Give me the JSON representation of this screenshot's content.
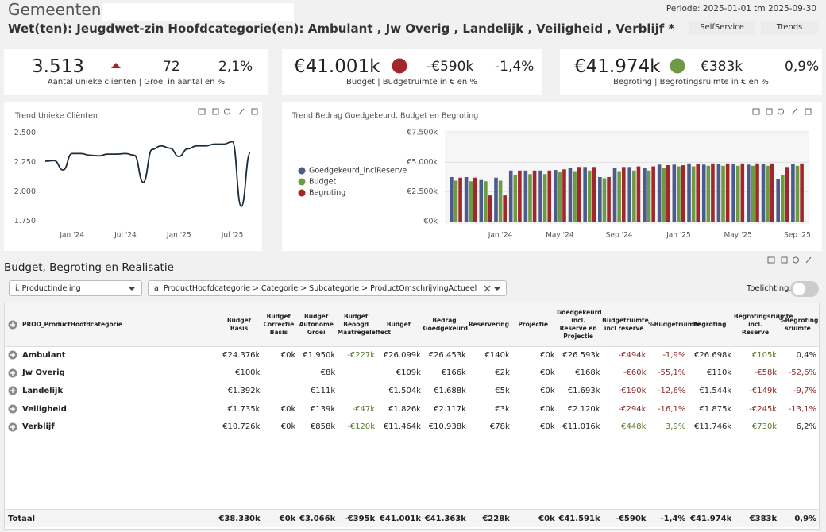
{
  "header": {
    "title": "Gemeenten:",
    "subtitle": "Wet(ten): Jeugdwet-zin Hoofdcategorie(en): Ambulant , Jw Overig , Landelijk , Veiligheid , Verblijf *",
    "period": "Periode: 2025-01-01 tm 2025-09-30",
    "buttons": [
      "SelfService",
      "Trends"
    ]
  },
  "kpis": [
    {
      "value": "3.513",
      "indicator": "triangle",
      "indicator_color": "#a3272a",
      "delta": "72",
      "pct": "2,1%",
      "label": "Aantal unieke clienten | Groei in aantal en %"
    },
    {
      "value": "€41.001k",
      "indicator": "circle",
      "indicator_color": "#a3272a",
      "delta": "-€590k",
      "pct": "-1,4%",
      "label": "Budget | Budgetruimte in € en %"
    },
    {
      "value": "€41.974k",
      "indicator": "circle",
      "indicator_color": "#6e9a45",
      "delta": "€383k",
      "pct": "0,9%",
      "label": "Begroting | Begrotingsruimte in € en %"
    }
  ],
  "trend_clients": {
    "type": "line",
    "title": "Trend Unieke Cliënten",
    "categories": [
      null,
      null,
      null,
      "Jan '24",
      null,
      null,
      null,
      null,
      null,
      "Jul '24",
      null,
      null,
      null,
      null,
      null,
      "Jan '25",
      null,
      null,
      null,
      null,
      null,
      "Jul '25",
      null,
      null
    ],
    "values": [
      2260,
      2265,
      2185,
      2325,
      2325,
      2310,
      2305,
      2320,
      2320,
      2325,
      2310,
      2080,
      2360,
      2390,
      2370,
      2300,
      2365,
      2390,
      2390,
      2405,
      2405,
      2425,
      1875,
      2330
    ],
    "color": "#1c2b3a",
    "ylim": [
      1700,
      2550
    ],
    "yticks": [
      {
        "value": 1750,
        "label": "1.750"
      },
      {
        "value": 2000,
        "label": "2.000"
      },
      {
        "value": 2250,
        "label": "2.250"
      },
      {
        "value": 2500,
        "label": "2.500"
      }
    ],
    "grid": false
  },
  "trend_budget": {
    "type": "bar",
    "title": "Trend Bedrag Goedgekeurd, Budget en Begroting",
    "categories": [
      null,
      null,
      null,
      "Jan '24",
      null,
      null,
      null,
      "May '24",
      null,
      null,
      null,
      "Sep '24",
      null,
      null,
      null,
      "Jan '25",
      null,
      null,
      null,
      "May '25",
      null,
      null,
      null,
      "Sep '25"
    ],
    "series": [
      {
        "name": "Goedgekeurd_inclReserve",
        "color": "#4b5b8c",
        "values": [
          3750,
          3750,
          3500,
          3700,
          4300,
          4300,
          4300,
          4350,
          4550,
          4600,
          3750,
          4550,
          4600,
          4550,
          4800,
          4800,
          4900,
          4800,
          4850,
          4850,
          4800,
          4850,
          3600,
          4850
        ]
      },
      {
        "name": "Budget",
        "color": "#6e9a45",
        "values": [
          3450,
          3400,
          3400,
          3450,
          3950,
          4000,
          4000,
          4150,
          4250,
          4300,
          3650,
          4250,
          4300,
          4300,
          4550,
          4650,
          4650,
          4700,
          4700,
          4700,
          4700,
          4700,
          3900,
          4700
        ]
      },
      {
        "name": "Begroting",
        "color": "#a3272a",
        "values": [
          3700,
          3700,
          2200,
          2200,
          4300,
          4300,
          4300,
          4400,
          4600,
          4600,
          3750,
          4600,
          4650,
          4650,
          4750,
          4750,
          4850,
          4900,
          4900,
          4900,
          4900,
          4900,
          4600,
          4900
        ]
      }
    ],
    "ylim": [
      0,
      7500
    ],
    "yticks": [
      {
        "value": 0,
        "label": "€0k"
      },
      {
        "value": 2500,
        "label": "€2.500k"
      },
      {
        "value": 5000,
        "label": "€5.000k"
      },
      {
        "value": 7500,
        "label": "€7.500k"
      }
    ],
    "grid": true,
    "legend": "left"
  },
  "section": {
    "title": "Budget, Begroting en Realisatie",
    "grouping": "i. Productindeling",
    "hierarchy": "a. ProductHoofdcategorie > Categorie > Subcategorie > ProductOmschrijvingActueel",
    "toggle_label": "Toelichting:"
  },
  "table": {
    "columns": [
      "PROD_ProductHoofdcategorie",
      "Budget Basis",
      "Budget Correctie Basis",
      "Budget Autonome Groei",
      "Budget Beoogd Maatregeleffect",
      "Budget",
      "Bedrag Goedgekeurd",
      "Reservering",
      "Projectie",
      "Goedgekeurd incl. Reserve en Projectie",
      "Budgetruimte incl reserve",
      "%Budgetruimte",
      "Begroting",
      "Begrotingsruimte incl. Reserve",
      "%Begroting sruimte"
    ],
    "rows": [
      [
        "Ambulant",
        "€24.376k",
        "€0k",
        "€1.950k",
        "-€227k",
        "€26.099k",
        "€26.453k",
        "€140k",
        "€0k",
        "€26.593k",
        "-€494k",
        "-1,9%",
        "€26.698k",
        "€105k",
        "0,4%"
      ],
      [
        "Jw Overig",
        "€100k",
        null,
        "€8k",
        null,
        "€109k",
        "€166k",
        "€2k",
        "€0k",
        "€168k",
        "-€60k",
        "-55,1%",
        "€110k",
        "-€58k",
        "-52,6%"
      ],
      [
        "Landelijk",
        "€1.392k",
        null,
        "€111k",
        null,
        "€1.504k",
        "€1.688k",
        "€5k",
        "€0k",
        "€1.693k",
        "-€190k",
        "-12,6%",
        "€1.544k",
        "-€149k",
        "-9,7%"
      ],
      [
        "Veiligheid",
        "€1.735k",
        "€0k",
        "€139k",
        "-€47k",
        "€1.826k",
        "€2.117k",
        "€3k",
        "€0k",
        "€2.120k",
        "-€294k",
        "-16,1%",
        "€1.875k",
        "-€245k",
        "-13,1%"
      ],
      [
        "Verblijf",
        "€10.726k",
        "€0k",
        "€858k",
        "-€120k",
        "€11.464k",
        "€10.938k",
        "€78k",
        "€0k",
        "€11.016k",
        "€448k",
        "3,9%",
        "€11.746k",
        "€730k",
        "6,2%"
      ]
    ],
    "total": [
      "Totaal",
      "€38.330k",
      "€0k",
      "€3.066k",
      "-€395k",
      "€41.001k",
      "€41.363k",
      "€228k",
      "€0k",
      "€41.591k",
      "-€590k",
      "-1,4%",
      "€41.974k",
      "€383k",
      "0,9%"
    ]
  }
}
